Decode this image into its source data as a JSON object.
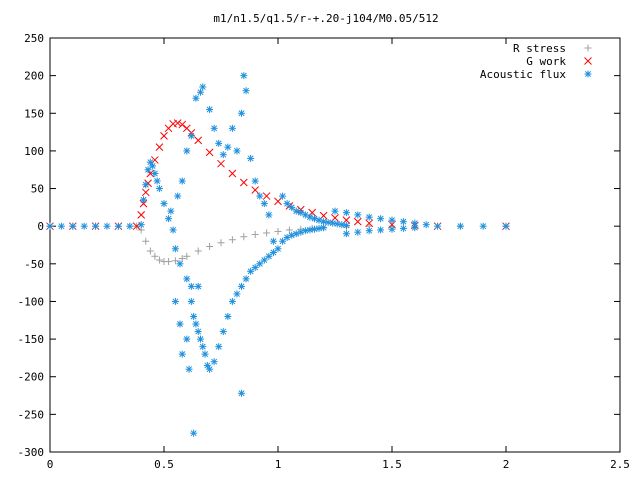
{
  "chart_data": {
    "type": "scatter",
    "title": "m1/n1.5/q1.5/r-+.20-j104/M0.05/512",
    "xlabel": "",
    "ylabel": "",
    "xlim": [
      0,
      2.5
    ],
    "ylim": [
      -300,
      250
    ],
    "x_ticks": [
      0,
      0.5,
      1,
      1.5,
      2,
      2.5
    ],
    "x_tick_labels": [
      "0",
      "0.5",
      "1",
      "1.5",
      "2",
      "2.5"
    ],
    "y_ticks": [
      250,
      200,
      150,
      100,
      50,
      0,
      -50,
      -100,
      -150,
      -200,
      -250,
      -300
    ],
    "y_tick_labels": [
      "250",
      "200",
      "150",
      "100",
      "50",
      "0",
      "-50",
      "-100",
      "-150",
      "-200",
      "-250",
      "-300"
    ],
    "grid": false,
    "legend_position": "top-right",
    "series": [
      {
        "name": "R stress",
        "marker": "plus",
        "color": "#a0a0a0",
        "points": [
          [
            0.0,
            0
          ],
          [
            0.1,
            0
          ],
          [
            0.2,
            0
          ],
          [
            0.3,
            0
          ],
          [
            0.38,
            0
          ],
          [
            0.4,
            -5
          ],
          [
            0.42,
            -20
          ],
          [
            0.44,
            -33
          ],
          [
            0.46,
            -40
          ],
          [
            0.48,
            -45
          ],
          [
            0.5,
            -47
          ],
          [
            0.52,
            -47
          ],
          [
            0.55,
            -46
          ],
          [
            0.58,
            -43
          ],
          [
            0.6,
            -40
          ],
          [
            0.65,
            -33
          ],
          [
            0.7,
            -27
          ],
          [
            0.75,
            -22
          ],
          [
            0.8,
            -18
          ],
          [
            0.85,
            -14
          ],
          [
            0.9,
            -11
          ],
          [
            0.95,
            -9
          ],
          [
            1.0,
            -7
          ],
          [
            1.05,
            -5
          ],
          [
            1.1,
            -4
          ],
          [
            1.15,
            -3
          ],
          [
            1.2,
            -2
          ],
          [
            1.3,
            -1
          ],
          [
            1.4,
            0
          ],
          [
            1.5,
            0
          ],
          [
            1.6,
            0
          ],
          [
            1.8,
            0
          ],
          [
            2.0,
            0
          ]
        ]
      },
      {
        "name": "G work",
        "marker": "cross",
        "color": "#ff0000",
        "points": [
          [
            0.0,
            0
          ],
          [
            0.1,
            0
          ],
          [
            0.2,
            0
          ],
          [
            0.3,
            0
          ],
          [
            0.38,
            0
          ],
          [
            0.4,
            15
          ],
          [
            0.41,
            30
          ],
          [
            0.42,
            45
          ],
          [
            0.43,
            57
          ],
          [
            0.44,
            70
          ],
          [
            0.46,
            88
          ],
          [
            0.48,
            105
          ],
          [
            0.5,
            120
          ],
          [
            0.52,
            130
          ],
          [
            0.54,
            136
          ],
          [
            0.56,
            137
          ],
          [
            0.58,
            135
          ],
          [
            0.6,
            130
          ],
          [
            0.62,
            124
          ],
          [
            0.65,
            114
          ],
          [
            0.7,
            98
          ],
          [
            0.75,
            83
          ],
          [
            0.8,
            70
          ],
          [
            0.85,
            58
          ],
          [
            0.9,
            48
          ],
          [
            0.95,
            40
          ],
          [
            1.0,
            33
          ],
          [
            1.05,
            27
          ],
          [
            1.1,
            22
          ],
          [
            1.15,
            18
          ],
          [
            1.2,
            14
          ],
          [
            1.25,
            11
          ],
          [
            1.3,
            8
          ],
          [
            1.35,
            6
          ],
          [
            1.4,
            4
          ],
          [
            1.5,
            2
          ],
          [
            1.6,
            1
          ],
          [
            1.7,
            0
          ],
          [
            2.0,
            0
          ]
        ]
      },
      {
        "name": "Acoustic flux",
        "marker": "star",
        "color": "#1e90dd",
        "points": [
          [
            0.0,
            0
          ],
          [
            0.05,
            0
          ],
          [
            0.1,
            0
          ],
          [
            0.15,
            0
          ],
          [
            0.2,
            0
          ],
          [
            0.25,
            0
          ],
          [
            0.3,
            0
          ],
          [
            0.35,
            0
          ],
          [
            0.4,
            2
          ],
          [
            0.41,
            35
          ],
          [
            0.42,
            55
          ],
          [
            0.43,
            75
          ],
          [
            0.44,
            85
          ],
          [
            0.45,
            80
          ],
          [
            0.46,
            70
          ],
          [
            0.47,
            60
          ],
          [
            0.48,
            50
          ],
          [
            0.5,
            30
          ],
          [
            0.52,
            10
          ],
          [
            0.54,
            -5
          ],
          [
            0.55,
            -30
          ],
          [
            0.57,
            -50
          ],
          [
            0.6,
            -70
          ],
          [
            0.62,
            -80
          ],
          [
            0.65,
            -80
          ],
          [
            0.53,
            20
          ],
          [
            0.56,
            40
          ],
          [
            0.58,
            60
          ],
          [
            0.6,
            100
          ],
          [
            0.62,
            120
          ],
          [
            0.64,
            170
          ],
          [
            0.66,
            178
          ],
          [
            0.67,
            185
          ],
          [
            0.7,
            155
          ],
          [
            0.72,
            130
          ],
          [
            0.74,
            110
          ],
          [
            0.76,
            95
          ],
          [
            0.78,
            105
          ],
          [
            0.8,
            130
          ],
          [
            0.82,
            100
          ],
          [
            0.84,
            150
          ],
          [
            0.85,
            200
          ],
          [
            0.86,
            180
          ],
          [
            0.88,
            90
          ],
          [
            0.9,
            60
          ],
          [
            0.92,
            40
          ],
          [
            0.94,
            30
          ],
          [
            0.96,
            15
          ],
          [
            0.98,
            -20
          ],
          [
            1.0,
            -30
          ],
          [
            0.62,
            -100
          ],
          [
            0.63,
            -120
          ],
          [
            0.64,
            -130
          ],
          [
            0.65,
            -140
          ],
          [
            0.66,
            -150
          ],
          [
            0.67,
            -160
          ],
          [
            0.68,
            -170
          ],
          [
            0.69,
            -185
          ],
          [
            0.7,
            -190
          ],
          [
            0.72,
            -180
          ],
          [
            0.74,
            -160
          ],
          [
            0.76,
            -140
          ],
          [
            0.78,
            -120
          ],
          [
            0.8,
            -100
          ],
          [
            0.82,
            -90
          ],
          [
            0.84,
            -80
          ],
          [
            0.86,
            -70
          ],
          [
            0.88,
            -60
          ],
          [
            0.9,
            -55
          ],
          [
            0.92,
            -50
          ],
          [
            0.94,
            -45
          ],
          [
            0.96,
            -40
          ],
          [
            0.98,
            -35
          ],
          [
            0.63,
            -275
          ],
          [
            0.84,
            -222
          ],
          [
            0.55,
            -100
          ],
          [
            0.57,
            -130
          ],
          [
            0.6,
            -150
          ],
          [
            0.61,
            -190
          ],
          [
            0.58,
            -170
          ],
          [
            1.02,
            40
          ],
          [
            1.04,
            30
          ],
          [
            1.06,
            25
          ],
          [
            1.08,
            20
          ],
          [
            1.1,
            18
          ],
          [
            1.12,
            15
          ],
          [
            1.14,
            12
          ],
          [
            1.16,
            10
          ],
          [
            1.18,
            8
          ],
          [
            1.2,
            6
          ],
          [
            1.22,
            5
          ],
          [
            1.24,
            4
          ],
          [
            1.26,
            3
          ],
          [
            1.28,
            2
          ],
          [
            1.3,
            1
          ],
          [
            1.02,
            -20
          ],
          [
            1.04,
            -15
          ],
          [
            1.06,
            -12
          ],
          [
            1.08,
            -10
          ],
          [
            1.1,
            -8
          ],
          [
            1.12,
            -6
          ],
          [
            1.14,
            -5
          ],
          [
            1.16,
            -4
          ],
          [
            1.18,
            -3
          ],
          [
            1.2,
            -2
          ],
          [
            1.25,
            20
          ],
          [
            1.3,
            18
          ],
          [
            1.35,
            15
          ],
          [
            1.4,
            12
          ],
          [
            1.45,
            10
          ],
          [
            1.5,
            8
          ],
          [
            1.55,
            6
          ],
          [
            1.6,
            4
          ],
          [
            1.65,
            2
          ],
          [
            1.3,
            -10
          ],
          [
            1.35,
            -8
          ],
          [
            1.4,
            -6
          ],
          [
            1.45,
            -5
          ],
          [
            1.5,
            -4
          ],
          [
            1.55,
            -3
          ],
          [
            1.6,
            -2
          ],
          [
            1.7,
            0
          ],
          [
            1.8,
            0
          ],
          [
            1.9,
            0
          ],
          [
            2.0,
            0
          ]
        ]
      }
    ]
  }
}
